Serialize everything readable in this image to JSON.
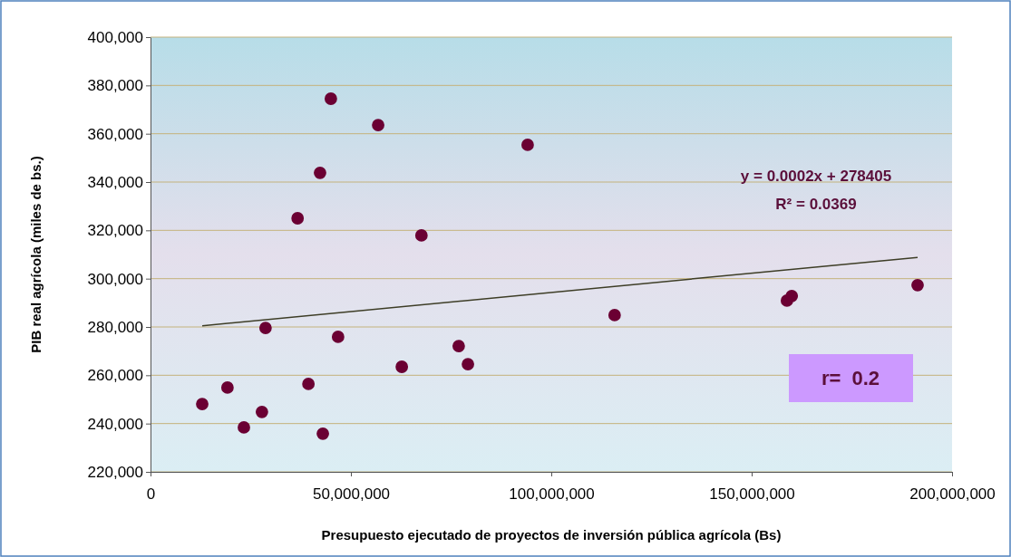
{
  "chart_data": {
    "type": "scatter",
    "xlabel": "Presupuesto ejecutado de proyectos de inversión pública agrícola (Bs)",
    "ylabel": "PIB real agrícola (miles de bs.)",
    "xlim": [
      0,
      200000000
    ],
    "ylim": [
      220000,
      400000
    ],
    "xticks": [
      {
        "value": 0,
        "label": "0"
      },
      {
        "value": 50000000,
        "label": "50,000,000"
      },
      {
        "value": 100000000,
        "label": "100,000,000"
      },
      {
        "value": 150000000,
        "label": "150,000,000"
      },
      {
        "value": 200000000,
        "label": "200,000,000"
      }
    ],
    "yticks": [
      {
        "value": 220000,
        "label": "220,000"
      },
      {
        "value": 240000,
        "label": "240,000"
      },
      {
        "value": 260000,
        "label": "260,000"
      },
      {
        "value": 280000,
        "label": "280,000"
      },
      {
        "value": 300000,
        "label": "300,000"
      },
      {
        "value": 320000,
        "label": "320,000"
      },
      {
        "value": 340000,
        "label": "340,000"
      },
      {
        "value": 360000,
        "label": "360,000"
      },
      {
        "value": 380000,
        "label": "380,000"
      },
      {
        "value": 400000,
        "label": "400,000"
      }
    ],
    "grid": "y",
    "series": [
      {
        "marker": "circle",
        "color": "#6b0033",
        "x": [
          12900000,
          19200000,
          23300000,
          27800000,
          28700000,
          36700000,
          39400000,
          42300000,
          43000000,
          45000000,
          46800000,
          56800000,
          62700000,
          67600000,
          76900000,
          79200000,
          94100000,
          115800000,
          158800000,
          160000000,
          191400000
        ],
        "values": [
          248100,
          254900,
          238400,
          244800,
          279600,
          325000,
          256400,
          343800,
          235800,
          374500,
          275900,
          363600,
          263500,
          317900,
          272100,
          264600,
          355400,
          284900,
          290900,
          292800,
          297300
        ]
      },
      {
        "type": "line",
        "marker": "none",
        "color": "#3d3d26",
        "x": [
          12900000,
          191400000
        ],
        "values": [
          280500,
          308800
        ]
      }
    ],
    "annotations": [
      "y = 0.0002x + 278405",
      "R² = 0.0369",
      "r=  0.2"
    ]
  }
}
